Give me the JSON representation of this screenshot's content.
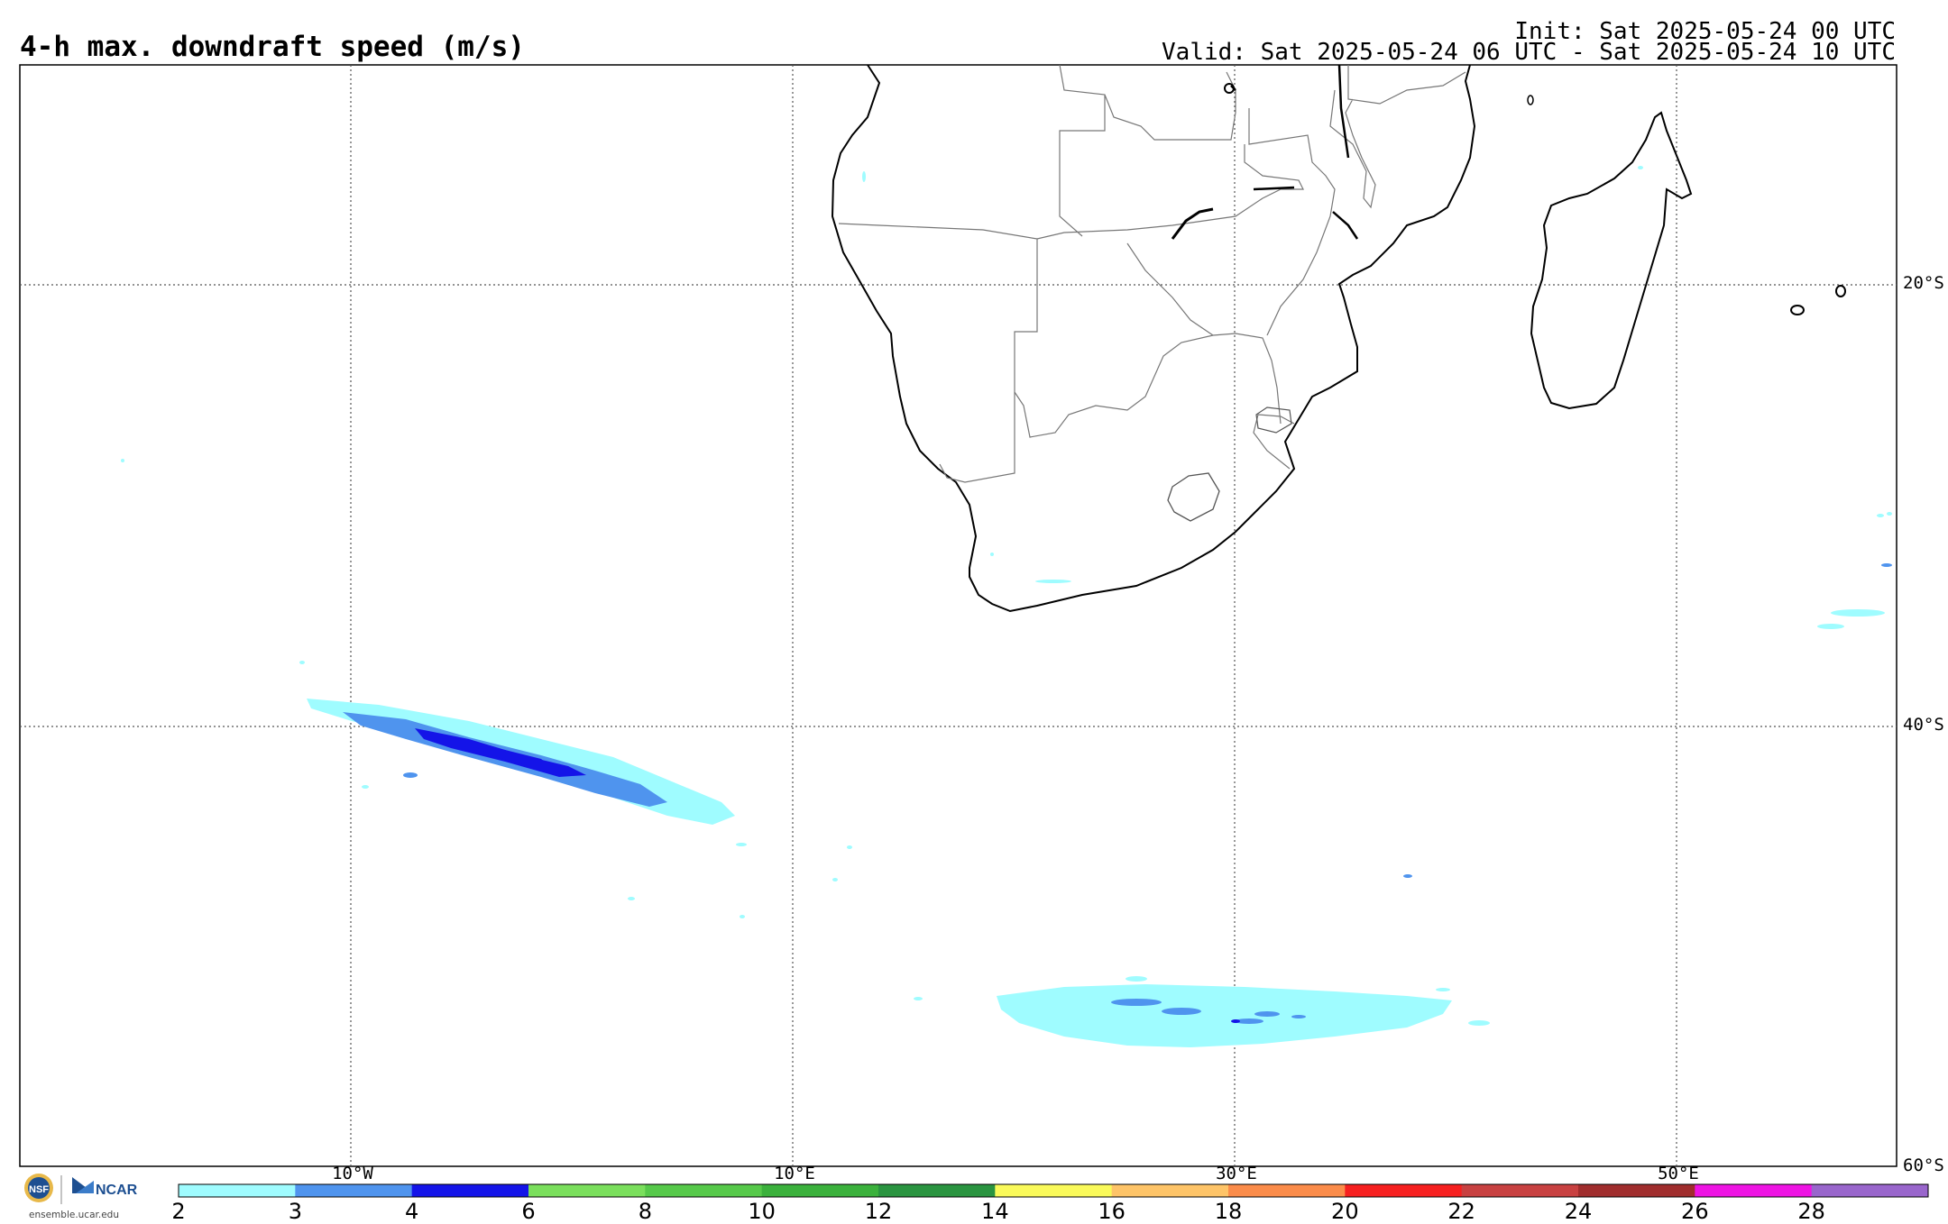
{
  "header": {
    "title": "4-h max. downdraft speed (m/s)",
    "init": "Init: Sat 2025-05-24 00 UTC",
    "valid": "Valid: Sat 2025-05-24 06 UTC - Sat 2025-05-24 10 UTC"
  },
  "grid": {
    "lon_labels": [
      "10°W",
      "10°E",
      "30°E",
      "50°E"
    ],
    "lat_labels": [
      "20°S",
      "40°S",
      "60°S"
    ]
  },
  "colorbar": {
    "ticks": [
      "2",
      "3",
      "4",
      "6",
      "8",
      "10",
      "12",
      "14",
      "16",
      "18",
      "20",
      "22",
      "24",
      "26",
      "28"
    ],
    "colors": [
      "#9ffcff",
      "#4f94ee",
      "#1414e8",
      "#7adf5c",
      "#56c94a",
      "#3bb13c",
      "#2a9440",
      "#fafa5a",
      "#fec468",
      "#fb8c4a",
      "#f62020",
      "#c84141",
      "#a02d2d",
      "#ee14e3",
      "#9966cc"
    ]
  },
  "footer": {
    "site": "ensemble.ucar.edu",
    "ncar_label": "NCAR"
  },
  "icons": [
    "nsf-logo-icon",
    "ncar-logo-icon"
  ]
}
